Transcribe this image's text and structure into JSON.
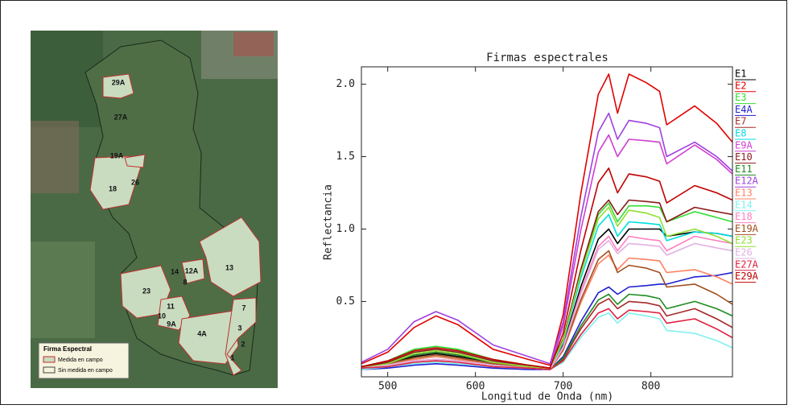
{
  "map": {
    "plot_labels": [
      "29A",
      "27A",
      "19A",
      "18",
      "26",
      "14",
      "12A",
      "13",
      "8",
      "23",
      "11",
      "10",
      "9A",
      "4A",
      "7",
      "3",
      "2",
      "1"
    ],
    "legend": {
      "title": "Firma Espectral",
      "items": [
        "Medida en campo",
        "Sin medida en campo"
      ]
    }
  },
  "chart_data": {
    "type": "line",
    "title": "Firmas espectrales",
    "x_label": "Longitud de Onda (nm)",
    "y_label": "Reflectancia",
    "xlim": [
      470,
      893
    ],
    "ylim": [
      -0.02,
      2.12
    ],
    "xticks": [
      500,
      600,
      700,
      800
    ],
    "yticks": [
      0.5,
      {
        "value": 1,
        "label": "1.0"
      },
      1.5,
      {
        "value": 2,
        "label": "2.0"
      }
    ],
    "legend": "right",
    "x": [
      470,
      500,
      530,
      555,
      580,
      620,
      660,
      685,
      700,
      720,
      740,
      752,
      762,
      775,
      795,
      810,
      818,
      850,
      875,
      893
    ],
    "series": [
      {
        "name": "E1",
        "color": "#000000",
        "values": [
          0.05,
          0.07,
          0.12,
          0.14,
          0.12,
          0.08,
          0.05,
          0.04,
          0.2,
          0.6,
          0.93,
          1.0,
          0.9,
          1.0,
          1.0,
          1.0,
          0.95,
          0.98,
          0.97,
          0.95
        ]
      },
      {
        "name": "E2",
        "color": "#e00000",
        "values": [
          0.07,
          0.15,
          0.32,
          0.4,
          0.34,
          0.17,
          0.1,
          0.06,
          0.41,
          1.24,
          1.93,
          2.07,
          1.8,
          2.07,
          2.01,
          1.95,
          1.72,
          1.85,
          1.73,
          1.6
        ]
      },
      {
        "name": "E3",
        "color": "#33dd33",
        "values": [
          0.05,
          0.09,
          0.17,
          0.19,
          0.17,
          0.1,
          0.06,
          0.04,
          0.24,
          0.71,
          1.1,
          1.18,
          1.05,
          1.16,
          1.16,
          1.15,
          1.05,
          1.12,
          1.08,
          1.05
        ]
      },
      {
        "name": "E4A",
        "color": "#1f1fd0",
        "values": [
          0.03,
          0.04,
          0.06,
          0.07,
          0.06,
          0.04,
          0.03,
          0.03,
          0.12,
          0.36,
          0.56,
          0.6,
          0.55,
          0.6,
          0.61,
          0.62,
          0.62,
          0.67,
          0.68,
          0.7
        ]
      },
      {
        "name": "E7",
        "color": "#a52a2a",
        "values": [
          0.04,
          0.06,
          0.09,
          0.1,
          0.09,
          0.06,
          0.04,
          0.03,
          0.1,
          0.31,
          0.48,
          0.52,
          0.45,
          0.5,
          0.49,
          0.47,
          0.4,
          0.45,
          0.38,
          0.32
        ]
      },
      {
        "name": "E8",
        "color": "#00dede",
        "values": [
          0.04,
          0.06,
          0.1,
          0.12,
          0.1,
          0.07,
          0.05,
          0.03,
          0.22,
          0.66,
          1.02,
          1.1,
          0.95,
          1.05,
          1.04,
          1.03,
          0.92,
          0.98,
          0.97,
          0.95
        ]
      },
      {
        "name": "E9A",
        "color": "#d040d0",
        "values": [
          0.05,
          0.08,
          0.13,
          0.15,
          0.13,
          0.08,
          0.06,
          0.04,
          0.33,
          0.99,
          1.53,
          1.65,
          1.5,
          1.62,
          1.61,
          1.6,
          1.45,
          1.58,
          1.48,
          1.38
        ]
      },
      {
        "name": "E10",
        "color": "#8b1a1a",
        "values": [
          0.05,
          0.08,
          0.15,
          0.17,
          0.15,
          0.09,
          0.06,
          0.04,
          0.24,
          0.72,
          1.12,
          1.2,
          1.1,
          1.2,
          1.19,
          1.18,
          1.05,
          1.15,
          1.12,
          1.1
        ]
      },
      {
        "name": "E11",
        "color": "#228b22",
        "values": [
          0.04,
          0.07,
          0.13,
          0.15,
          0.13,
          0.08,
          0.05,
          0.03,
          0.11,
          0.33,
          0.51,
          0.55,
          0.48,
          0.55,
          0.54,
          0.52,
          0.45,
          0.5,
          0.45,
          0.4
        ]
      },
      {
        "name": "E12A",
        "color": "#a040e0",
        "values": [
          0.08,
          0.17,
          0.36,
          0.43,
          0.37,
          0.2,
          0.12,
          0.07,
          0.36,
          1.08,
          1.67,
          1.8,
          1.62,
          1.75,
          1.73,
          1.7,
          1.5,
          1.6,
          1.5,
          1.4
        ]
      },
      {
        "name": "E13",
        "color": "#ff8060",
        "values": [
          0.04,
          0.06,
          0.1,
          0.12,
          0.1,
          0.07,
          0.05,
          0.03,
          0.16,
          0.49,
          0.76,
          0.82,
          0.72,
          0.8,
          0.79,
          0.78,
          0.7,
          0.72,
          0.67,
          0.62
        ]
      },
      {
        "name": "E14",
        "color": "#80f0f0",
        "values": [
          0.03,
          0.05,
          0.07,
          0.08,
          0.07,
          0.05,
          0.04,
          0.03,
          0.08,
          0.25,
          0.39,
          0.42,
          0.35,
          0.42,
          0.4,
          0.38,
          0.3,
          0.28,
          0.23,
          0.18
        ]
      },
      {
        "name": "E18",
        "color": "#ff80c0",
        "values": [
          0.04,
          0.06,
          0.09,
          0.1,
          0.09,
          0.06,
          0.04,
          0.03,
          0.19,
          0.57,
          0.88,
          0.95,
          0.85,
          0.95,
          0.93,
          0.92,
          0.85,
          0.95,
          0.92,
          0.9
        ]
      },
      {
        "name": "E19A",
        "color": "#a05020",
        "values": [
          0.04,
          0.07,
          0.11,
          0.13,
          0.11,
          0.07,
          0.05,
          0.03,
          0.17,
          0.51,
          0.79,
          0.85,
          0.7,
          0.75,
          0.73,
          0.7,
          0.6,
          0.62,
          0.55,
          0.48
        ]
      },
      {
        "name": "E23",
        "color": "#90e030",
        "values": [
          0.04,
          0.07,
          0.14,
          0.16,
          0.14,
          0.08,
          0.05,
          0.04,
          0.23,
          0.69,
          1.07,
          1.15,
          1.02,
          1.13,
          1.11,
          1.08,
          0.95,
          1.0,
          0.95,
          0.9
        ]
      },
      {
        "name": "E26",
        "color": "#e0b0e0",
        "values": [
          0.04,
          0.06,
          0.09,
          0.1,
          0.09,
          0.06,
          0.04,
          0.03,
          0.18,
          0.55,
          0.86,
          0.92,
          0.83,
          0.9,
          0.89,
          0.88,
          0.82,
          0.9,
          0.87,
          0.85
        ]
      },
      {
        "name": "E27A",
        "color": "#e02040",
        "values": [
          0.04,
          0.05,
          0.08,
          0.09,
          0.08,
          0.05,
          0.04,
          0.03,
          0.09,
          0.27,
          0.42,
          0.45,
          0.38,
          0.44,
          0.43,
          0.42,
          0.35,
          0.38,
          0.31,
          0.25
        ]
      },
      {
        "name": "E29A",
        "color": "#c00000",
        "values": [
          0.05,
          0.09,
          0.16,
          0.18,
          0.16,
          0.1,
          0.06,
          0.04,
          0.28,
          0.85,
          1.32,
          1.42,
          1.25,
          1.38,
          1.36,
          1.33,
          1.18,
          1.3,
          1.25,
          1.2
        ]
      }
    ]
  }
}
